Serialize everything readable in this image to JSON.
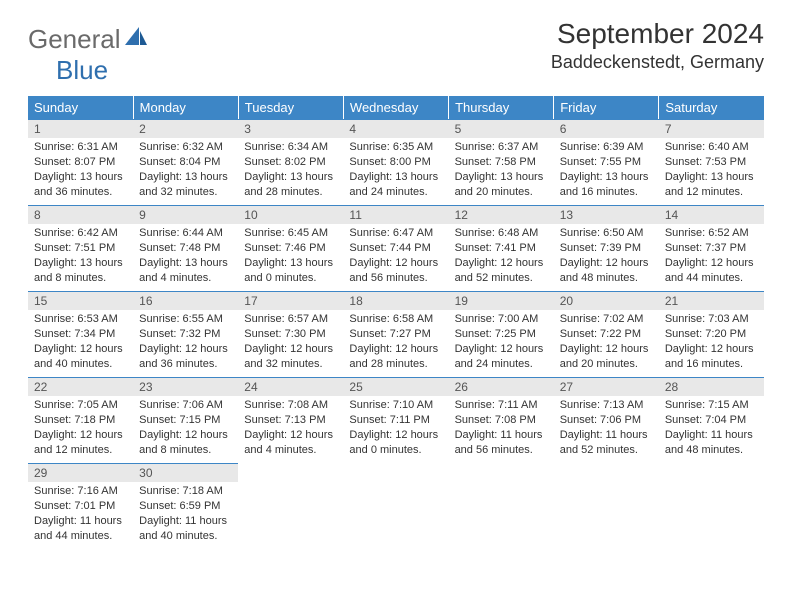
{
  "brand": {
    "part1": "General",
    "part2": "Blue"
  },
  "title": "September 2024",
  "location": "Baddeckenstedt, Germany",
  "colors": {
    "header_bg": "#3d86c6",
    "header_text": "#ffffff",
    "daynum_bg": "#e8e8e8",
    "daynum_border": "#3d86c6",
    "body_text": "#333333",
    "logo_gray": "#6a6a6a",
    "logo_blue": "#2f6fae"
  },
  "weekdays": [
    "Sunday",
    "Monday",
    "Tuesday",
    "Wednesday",
    "Thursday",
    "Friday",
    "Saturday"
  ],
  "weeks": [
    [
      {
        "n": "1",
        "sr": "Sunrise: 6:31 AM",
        "ss": "Sunset: 8:07 PM",
        "d1": "Daylight: 13 hours",
        "d2": "and 36 minutes."
      },
      {
        "n": "2",
        "sr": "Sunrise: 6:32 AM",
        "ss": "Sunset: 8:04 PM",
        "d1": "Daylight: 13 hours",
        "d2": "and 32 minutes."
      },
      {
        "n": "3",
        "sr": "Sunrise: 6:34 AM",
        "ss": "Sunset: 8:02 PM",
        "d1": "Daylight: 13 hours",
        "d2": "and 28 minutes."
      },
      {
        "n": "4",
        "sr": "Sunrise: 6:35 AM",
        "ss": "Sunset: 8:00 PM",
        "d1": "Daylight: 13 hours",
        "d2": "and 24 minutes."
      },
      {
        "n": "5",
        "sr": "Sunrise: 6:37 AM",
        "ss": "Sunset: 7:58 PM",
        "d1": "Daylight: 13 hours",
        "d2": "and 20 minutes."
      },
      {
        "n": "6",
        "sr": "Sunrise: 6:39 AM",
        "ss": "Sunset: 7:55 PM",
        "d1": "Daylight: 13 hours",
        "d2": "and 16 minutes."
      },
      {
        "n": "7",
        "sr": "Sunrise: 6:40 AM",
        "ss": "Sunset: 7:53 PM",
        "d1": "Daylight: 13 hours",
        "d2": "and 12 minutes."
      }
    ],
    [
      {
        "n": "8",
        "sr": "Sunrise: 6:42 AM",
        "ss": "Sunset: 7:51 PM",
        "d1": "Daylight: 13 hours",
        "d2": "and 8 minutes."
      },
      {
        "n": "9",
        "sr": "Sunrise: 6:44 AM",
        "ss": "Sunset: 7:48 PM",
        "d1": "Daylight: 13 hours",
        "d2": "and 4 minutes."
      },
      {
        "n": "10",
        "sr": "Sunrise: 6:45 AM",
        "ss": "Sunset: 7:46 PM",
        "d1": "Daylight: 13 hours",
        "d2": "and 0 minutes."
      },
      {
        "n": "11",
        "sr": "Sunrise: 6:47 AM",
        "ss": "Sunset: 7:44 PM",
        "d1": "Daylight: 12 hours",
        "d2": "and 56 minutes."
      },
      {
        "n": "12",
        "sr": "Sunrise: 6:48 AM",
        "ss": "Sunset: 7:41 PM",
        "d1": "Daylight: 12 hours",
        "d2": "and 52 minutes."
      },
      {
        "n": "13",
        "sr": "Sunrise: 6:50 AM",
        "ss": "Sunset: 7:39 PM",
        "d1": "Daylight: 12 hours",
        "d2": "and 48 minutes."
      },
      {
        "n": "14",
        "sr": "Sunrise: 6:52 AM",
        "ss": "Sunset: 7:37 PM",
        "d1": "Daylight: 12 hours",
        "d2": "and 44 minutes."
      }
    ],
    [
      {
        "n": "15",
        "sr": "Sunrise: 6:53 AM",
        "ss": "Sunset: 7:34 PM",
        "d1": "Daylight: 12 hours",
        "d2": "and 40 minutes."
      },
      {
        "n": "16",
        "sr": "Sunrise: 6:55 AM",
        "ss": "Sunset: 7:32 PM",
        "d1": "Daylight: 12 hours",
        "d2": "and 36 minutes."
      },
      {
        "n": "17",
        "sr": "Sunrise: 6:57 AM",
        "ss": "Sunset: 7:30 PM",
        "d1": "Daylight: 12 hours",
        "d2": "and 32 minutes."
      },
      {
        "n": "18",
        "sr": "Sunrise: 6:58 AM",
        "ss": "Sunset: 7:27 PM",
        "d1": "Daylight: 12 hours",
        "d2": "and 28 minutes."
      },
      {
        "n": "19",
        "sr": "Sunrise: 7:00 AM",
        "ss": "Sunset: 7:25 PM",
        "d1": "Daylight: 12 hours",
        "d2": "and 24 minutes."
      },
      {
        "n": "20",
        "sr": "Sunrise: 7:02 AM",
        "ss": "Sunset: 7:22 PM",
        "d1": "Daylight: 12 hours",
        "d2": "and 20 minutes."
      },
      {
        "n": "21",
        "sr": "Sunrise: 7:03 AM",
        "ss": "Sunset: 7:20 PM",
        "d1": "Daylight: 12 hours",
        "d2": "and 16 minutes."
      }
    ],
    [
      {
        "n": "22",
        "sr": "Sunrise: 7:05 AM",
        "ss": "Sunset: 7:18 PM",
        "d1": "Daylight: 12 hours",
        "d2": "and 12 minutes."
      },
      {
        "n": "23",
        "sr": "Sunrise: 7:06 AM",
        "ss": "Sunset: 7:15 PM",
        "d1": "Daylight: 12 hours",
        "d2": "and 8 minutes."
      },
      {
        "n": "24",
        "sr": "Sunrise: 7:08 AM",
        "ss": "Sunset: 7:13 PM",
        "d1": "Daylight: 12 hours",
        "d2": "and 4 minutes."
      },
      {
        "n": "25",
        "sr": "Sunrise: 7:10 AM",
        "ss": "Sunset: 7:11 PM",
        "d1": "Daylight: 12 hours",
        "d2": "and 0 minutes."
      },
      {
        "n": "26",
        "sr": "Sunrise: 7:11 AM",
        "ss": "Sunset: 7:08 PM",
        "d1": "Daylight: 11 hours",
        "d2": "and 56 minutes."
      },
      {
        "n": "27",
        "sr": "Sunrise: 7:13 AM",
        "ss": "Sunset: 7:06 PM",
        "d1": "Daylight: 11 hours",
        "d2": "and 52 minutes."
      },
      {
        "n": "28",
        "sr": "Sunrise: 7:15 AM",
        "ss": "Sunset: 7:04 PM",
        "d1": "Daylight: 11 hours",
        "d2": "and 48 minutes."
      }
    ],
    [
      {
        "n": "29",
        "sr": "Sunrise: 7:16 AM",
        "ss": "Sunset: 7:01 PM",
        "d1": "Daylight: 11 hours",
        "d2": "and 44 minutes."
      },
      {
        "n": "30",
        "sr": "Sunrise: 7:18 AM",
        "ss": "Sunset: 6:59 PM",
        "d1": "Daylight: 11 hours",
        "d2": "and 40 minutes."
      },
      {
        "empty": true
      },
      {
        "empty": true
      },
      {
        "empty": true
      },
      {
        "empty": true
      },
      {
        "empty": true
      }
    ]
  ]
}
